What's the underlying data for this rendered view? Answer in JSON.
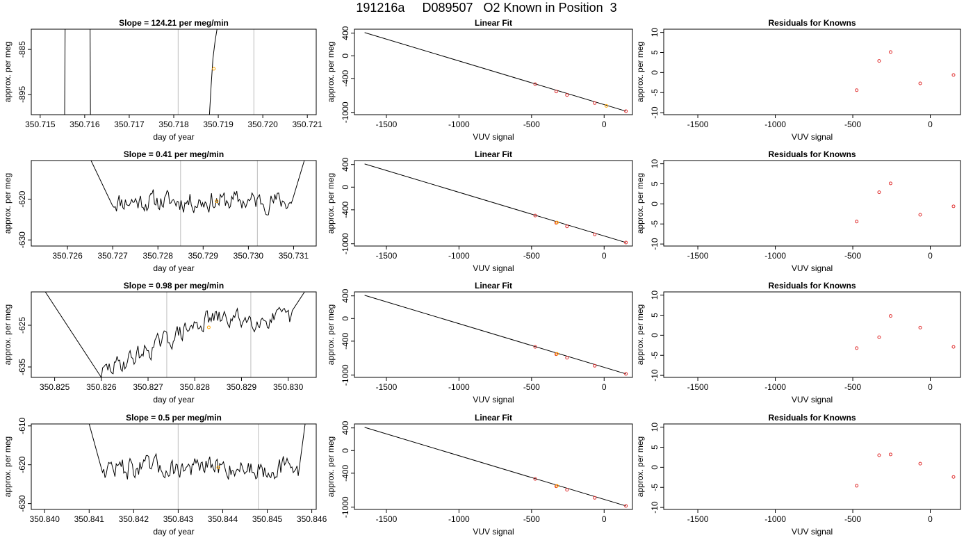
{
  "page_title": "191216a     D089507   O2 Known in Position  3",
  "colors": {
    "line": "#000000",
    "vline": "#c8c8c8",
    "known_point": "#ffa500",
    "residual_point": "#e03030"
  },
  "chart_data": [
    {
      "type": "line",
      "row": 1,
      "panel": "time-series",
      "title": "Slope =  124.21  per meg/min",
      "xlabel": "day of year",
      "ylabel": "approx. per meg",
      "xlim": [
        350.7148,
        350.7212
      ],
      "ylim": [
        -899.5,
        -880.5
      ],
      "xticks": [
        "350.715",
        "350.716",
        "350.717",
        "350.718",
        "350.719",
        "350.720",
        "350.721"
      ],
      "xtick_values": [
        350.715,
        350.716,
        350.717,
        350.718,
        350.719,
        350.72,
        350.721
      ],
      "yticks": [
        "-885",
        "-895"
      ],
      "ytick_values": [
        -885,
        -895
      ],
      "vlines": [
        350.7181,
        350.7198
      ],
      "point": {
        "x": 350.7189,
        "y": -889.3
      },
      "segments": [
        {
          "x": [
            350.71555,
            350.71556
          ],
          "y": [
            -900,
            -880
          ]
        },
        {
          "x": [
            350.71612,
            350.71613
          ],
          "y": [
            -880,
            -900
          ]
        },
        {
          "x": [
            350.7188,
            350.71884,
            350.71888,
            350.71893,
            350.71898
          ],
          "y": [
            -900,
            -893,
            -887,
            -883,
            -880
          ]
        }
      ]
    },
    {
      "type": "line",
      "row": 1,
      "panel": "linear-fit",
      "title": "Linear Fit",
      "xlabel": "VUV signal",
      "ylabel": "approx. per meg",
      "xlim": [
        -1720,
        195
      ],
      "ylim": [
        -1040,
        470
      ],
      "xticks": [
        "-1500",
        "-1000",
        "-500",
        "0"
      ],
      "xtick_values": [
        -1500,
        -1000,
        -500,
        0
      ],
      "yticks": [
        "400",
        "0",
        "-400",
        "-1000"
      ],
      "ytick_values": [
        400,
        0,
        -400,
        -1000
      ],
      "fit_line": {
        "x": [
          -1650,
          150
        ],
        "y": [
          410,
          -978
        ]
      },
      "knowns": [
        {
          "x": -475,
          "y": -501
        },
        {
          "x": -330,
          "y": -631
        },
        {
          "x": -256,
          "y": -693
        },
        {
          "x": -65,
          "y": -835
        },
        {
          "x": 150,
          "y": -978
        }
      ],
      "current": {
        "x": 15,
        "y": -885
      }
    },
    {
      "type": "scatter",
      "row": 1,
      "panel": "residuals",
      "title": "Residuals for Knowns",
      "xlabel": "VUV signal",
      "ylabel": "approx. per meg",
      "xlim": [
        -1720,
        195
      ],
      "ylim": [
        -10.5,
        10.8
      ],
      "xticks": [
        "-1500",
        "-1000",
        "-500",
        "0"
      ],
      "xtick_values": [
        -1500,
        -1000,
        -500,
        0
      ],
      "yticks": [
        "10",
        "5",
        "0",
        "-5",
        "-10"
      ],
      "ytick_values": [
        10,
        5,
        0,
        -5,
        -10
      ],
      "x": [
        -475,
        -330,
        -256,
        -65,
        150
      ],
      "y": [
        -4.4,
        2.9,
        5.1,
        -2.7,
        -0.6
      ]
    },
    {
      "type": "line",
      "row": 2,
      "panel": "time-series",
      "title": "Slope =  0.41  per meg/min",
      "xlabel": "day of year",
      "ylabel": "approx. per meg",
      "xlim": [
        350.7252,
        350.7315
      ],
      "ylim": [
        -631.5,
        -610.5
      ],
      "xticks": [
        "350.726",
        "350.727",
        "350.728",
        "350.729",
        "350.730",
        "350.731"
      ],
      "xtick_values": [
        350.726,
        350.727,
        350.728,
        350.729,
        350.73,
        350.731
      ],
      "yticks": [
        "-620",
        "-630"
      ],
      "ytick_values": [
        -620,
        -630
      ],
      "vlines": [
        350.7285,
        350.7302
      ],
      "point": {
        "x": 350.7293,
        "y": -620.5
      },
      "noise": {
        "x_start": 350.727,
        "x_end": 350.731,
        "mean": -620.5,
        "amp": 2.2,
        "step": 2.8e-05,
        "seed": 11,
        "ramp_in_start": [
          350.7265,
          -610
        ],
        "ramp_out_end": [
          350.73125,
          -610
        ]
      }
    },
    {
      "type": "line",
      "row": 2,
      "panel": "linear-fit",
      "title": "Linear Fit",
      "xlabel": "VUV signal",
      "ylabel": "approx. per meg",
      "xlim": [
        -1720,
        195
      ],
      "ylim": [
        -1040,
        470
      ],
      "xticks": [
        "-1500",
        "-1000",
        "-500",
        "0"
      ],
      "xtick_values": [
        -1500,
        -1000,
        -500,
        0
      ],
      "yticks": [
        "400",
        "0",
        "-400",
        "-1000"
      ],
      "ytick_values": [
        400,
        0,
        -400,
        -1000
      ],
      "fit_line": {
        "x": [
          -1650,
          150
        ],
        "y": [
          410,
          -978
        ]
      },
      "knowns": [
        {
          "x": -475,
          "y": -501
        },
        {
          "x": -330,
          "y": -631
        },
        {
          "x": -256,
          "y": -693
        },
        {
          "x": -65,
          "y": -835
        },
        {
          "x": 150,
          "y": -978
        }
      ],
      "current": {
        "x": -325,
        "y": -624
      }
    },
    {
      "type": "scatter",
      "row": 2,
      "panel": "residuals",
      "title": "Residuals for Knowns",
      "xlabel": "VUV signal",
      "ylabel": "approx. per meg",
      "xlim": [
        -1720,
        195
      ],
      "ylim": [
        -10.5,
        10.8
      ],
      "xticks": [
        "-1500",
        "-1000",
        "-500",
        "0"
      ],
      "xtick_values": [
        -1500,
        -1000,
        -500,
        0
      ],
      "yticks": [
        "10",
        "5",
        "0",
        "-5",
        "-10"
      ],
      "ytick_values": [
        10,
        5,
        0,
        -5,
        -10
      ],
      "x": [
        -475,
        -330,
        -256,
        -65,
        150
      ],
      "y": [
        -4.4,
        2.9,
        5.1,
        -2.7,
        -0.6
      ]
    },
    {
      "type": "line",
      "row": 3,
      "panel": "time-series",
      "title": "Slope =  0.98  per meg/min",
      "xlabel": "day of year",
      "ylabel": "approx. per meg",
      "xlim": [
        350.8245,
        350.8306
      ],
      "ylim": [
        -637.5,
        -617
      ],
      "xticks": [
        "350.825",
        "350.826",
        "350.827",
        "350.828",
        "350.829",
        "350.830"
      ],
      "xtick_values": [
        350.825,
        350.826,
        350.827,
        350.828,
        350.829,
        350.83
      ],
      "yticks": [
        "-625",
        "-635"
      ],
      "ytick_values": [
        -625,
        -635
      ],
      "vlines": [
        350.8274,
        350.8292
      ],
      "point": {
        "x": 350.8283,
        "y": -625.5
      },
      "noise": {
        "x_start": 350.826,
        "x_end": 350.8301,
        "mean_start": -636.5,
        "mean_end": -623.5,
        "mean_plateau_x": 350.8283,
        "amp": 2.0,
        "step": 2.8e-05,
        "seed": 29,
        "ramp_in_start": [
          350.8248,
          -617
        ],
        "ramp_out_end": [
          350.83035,
          -617
        ]
      }
    },
    {
      "type": "line",
      "row": 3,
      "panel": "linear-fit",
      "title": "Linear Fit",
      "xlabel": "VUV signal",
      "ylabel": "approx. per meg",
      "xlim": [
        -1720,
        195
      ],
      "ylim": [
        -1040,
        470
      ],
      "xticks": [
        "-1500",
        "-1000",
        "-500",
        "0"
      ],
      "xtick_values": [
        -1500,
        -1000,
        -500,
        0
      ],
      "yticks": [
        "400",
        "0",
        "-400",
        "-1000"
      ],
      "ytick_values": [
        400,
        0,
        -400,
        -1000
      ],
      "fit_line": {
        "x": [
          -1650,
          150
        ],
        "y": [
          410,
          -978
        ]
      },
      "knowns": [
        {
          "x": -475,
          "y": -501
        },
        {
          "x": -330,
          "y": -631
        },
        {
          "x": -256,
          "y": -693
        },
        {
          "x": -65,
          "y": -835
        },
        {
          "x": 150,
          "y": -978
        }
      ],
      "current": {
        "x": -325,
        "y": -624
      }
    },
    {
      "type": "scatter",
      "row": 3,
      "panel": "residuals",
      "title": "Residuals for Knowns",
      "xlabel": "VUV signal",
      "ylabel": "approx. per meg",
      "xlim": [
        -1720,
        195
      ],
      "ylim": [
        -10.5,
        10.8
      ],
      "xticks": [
        "-1500",
        "-1000",
        "-500",
        "0"
      ],
      "xtick_values": [
        -1500,
        -1000,
        -500,
        0
      ],
      "yticks": [
        "10",
        "5",
        "0",
        "-5",
        "-10"
      ],
      "ytick_values": [
        10,
        5,
        0,
        -5,
        -10
      ],
      "x": [
        -475,
        -330,
        -256,
        -65,
        150
      ],
      "y": [
        -3.2,
        -0.5,
        4.8,
        1.9,
        -2.9
      ]
    },
    {
      "type": "line",
      "row": 4,
      "panel": "time-series",
      "title": "Slope =  0.5  per meg/min",
      "xlabel": "day of year",
      "ylabel": "approx. per meg",
      "xlim": [
        350.8397,
        350.8461
      ],
      "ylim": [
        -631.5,
        -609.5
      ],
      "xticks": [
        "350.840",
        "350.841",
        "350.842",
        "350.843",
        "350.844",
        "350.845",
        "350.846"
      ],
      "xtick_values": [
        350.84,
        350.841,
        350.842,
        350.843,
        350.844,
        350.845,
        350.846
      ],
      "yticks": [
        "-610",
        "-620",
        "-630"
      ],
      "ytick_values": [
        -610,
        -620,
        -630
      ],
      "vlines": [
        350.843,
        350.8448
      ],
      "point": {
        "x": 350.8439,
        "y": -620.7
      },
      "noise": {
        "x_start": 350.8413,
        "x_end": 350.8457,
        "mean": -620.8,
        "amp": 2.4,
        "step": 2.8e-05,
        "seed": 47,
        "ramp_in_start": [
          350.841,
          -609.5
        ],
        "ramp_out_end": [
          350.84585,
          -609.5
        ]
      }
    },
    {
      "type": "line",
      "row": 4,
      "panel": "linear-fit",
      "title": "Linear Fit",
      "xlabel": "VUV signal",
      "ylabel": "approx. per meg",
      "xlim": [
        -1720,
        195
      ],
      "ylim": [
        -1040,
        470
      ],
      "xticks": [
        "-1500",
        "-1000",
        "-500",
        "0"
      ],
      "xtick_values": [
        -1500,
        -1000,
        -500,
        0
      ],
      "yticks": [
        "400",
        "0",
        "-400",
        "-1000"
      ],
      "ytick_values": [
        400,
        0,
        -400,
        -1000
      ],
      "fit_line": {
        "x": [
          -1650,
          150
        ],
        "y": [
          410,
          -978
        ]
      },
      "knowns": [
        {
          "x": -475,
          "y": -501
        },
        {
          "x": -330,
          "y": -631
        },
        {
          "x": -256,
          "y": -693
        },
        {
          "x": -65,
          "y": -835
        },
        {
          "x": 150,
          "y": -978
        }
      ],
      "current": {
        "x": -325,
        "y": -624
      }
    },
    {
      "type": "scatter",
      "row": 4,
      "panel": "residuals",
      "title": "Residuals for Knowns",
      "xlabel": "VUV signal",
      "ylabel": "approx. per meg",
      "xlim": [
        -1720,
        195
      ],
      "ylim": [
        -10.5,
        10.8
      ],
      "xticks": [
        "-1500",
        "-1000",
        "-500",
        "0"
      ],
      "xtick_values": [
        -1500,
        -1000,
        -500,
        0
      ],
      "yticks": [
        "10",
        "5",
        "0",
        "-5",
        "-10"
      ],
      "ytick_values": [
        10,
        5,
        0,
        -5,
        -10
      ],
      "x": [
        -475,
        -330,
        -256,
        -65,
        150
      ],
      "y": [
        -4.6,
        3.0,
        3.2,
        0.9,
        -2.4
      ]
    }
  ]
}
